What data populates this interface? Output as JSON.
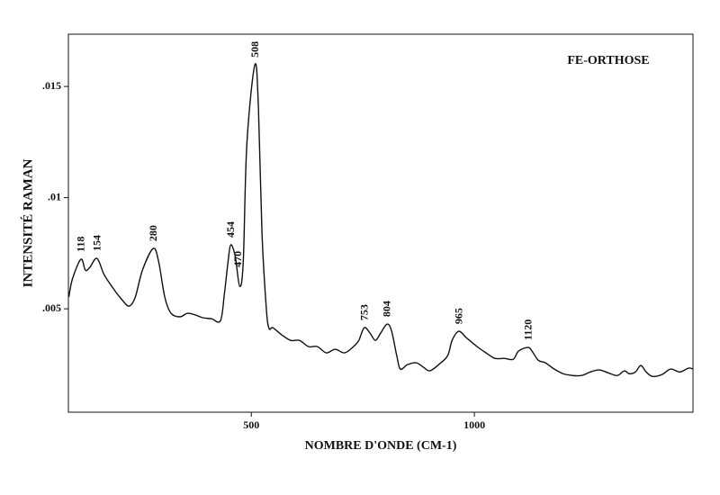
{
  "chart_data": {
    "type": "line",
    "title": "FE-ORTHOSE",
    "xlabel": "NOMBRE D'ONDE (CM-1)",
    "ylabel": "INTENSITÉ RAMAN",
    "x": [
      91,
      99,
      118,
      128,
      138,
      154,
      170,
      190,
      210,
      226,
      240,
      256,
      280,
      292,
      306,
      320,
      340,
      357,
      375,
      391,
      411,
      431,
      440,
      448,
      454,
      464,
      474,
      482,
      490,
      508,
      516,
      524,
      534,
      540,
      548,
      568,
      588,
      608,
      628,
      648,
      668,
      688,
      709,
      729,
      741,
      753,
      766,
      778,
      790,
      804,
      814,
      826,
      834,
      850,
      870,
      886,
      900,
      920,
      940,
      950,
      965,
      982,
      1006,
      1026,
      1046,
      1067,
      1087,
      1099,
      1120,
      1129,
      1143,
      1159,
      1179,
      1199,
      1220,
      1240,
      1260,
      1280,
      1300,
      1320,
      1336,
      1347,
      1361,
      1373,
      1385,
      1399,
      1420,
      1440,
      1460,
      1480,
      1490
    ],
    "series": [
      {
        "color": "#111111",
        "values": [
          0.00553,
          0.00634,
          0.00723,
          0.00674,
          0.00686,
          0.00727,
          0.00654,
          0.00593,
          0.00541,
          0.00512,
          0.00553,
          0.00674,
          0.00771,
          0.00715,
          0.00553,
          0.0048,
          0.00464,
          0.0048,
          0.00472,
          0.0046,
          0.00455,
          0.00447,
          0.00573,
          0.00715,
          0.00788,
          0.00735,
          0.00601,
          0.00715,
          0.01241,
          0.01598,
          0.01403,
          0.00836,
          0.00492,
          0.00411,
          0.00415,
          0.00383,
          0.00358,
          0.00358,
          0.0033,
          0.0033,
          0.00302,
          0.00318,
          0.00302,
          0.0033,
          0.00358,
          0.00415,
          0.00391,
          0.00358,
          0.00391,
          0.00431,
          0.00403,
          0.00289,
          0.00229,
          0.00249,
          0.00257,
          0.00237,
          0.00221,
          0.00249,
          0.00289,
          0.00358,
          0.00399,
          0.0037,
          0.0033,
          0.00302,
          0.00277,
          0.00277,
          0.00273,
          0.0031,
          0.00326,
          0.0031,
          0.00269,
          0.00257,
          0.00229,
          0.00208,
          0.002,
          0.002,
          0.00216,
          0.00225,
          0.00212,
          0.002,
          0.00221,
          0.00208,
          0.00216,
          0.00245,
          0.00216,
          0.00196,
          0.00204,
          0.00229,
          0.00216,
          0.00233,
          0.00229
        ]
      }
    ],
    "peak_labels": [
      118,
      154,
      280,
      454,
      470,
      508,
      753,
      804,
      965,
      1120
    ],
    "xlim": [
      90,
      1490
    ],
    "xticks": [
      500,
      1000
    ],
    "ylim": [
      0.00035,
      0.01735
    ],
    "yticks": [
      {
        "value": 0.005,
        "label": ".005"
      },
      {
        "value": 0.01,
        "label": ".01"
      },
      {
        "value": 0.015,
        "label": ".015"
      }
    ]
  }
}
